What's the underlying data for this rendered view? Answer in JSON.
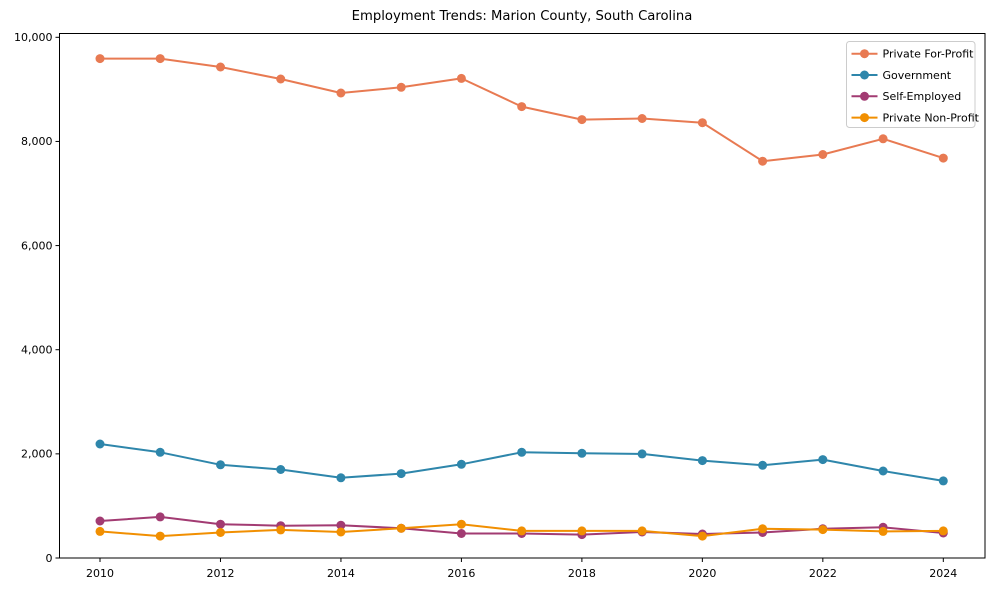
{
  "chart_data": {
    "type": "line",
    "title": "Employment Trends: Marion County, South Carolina",
    "xlabel": "",
    "ylabel": "",
    "x": [
      2010,
      2011,
      2012,
      2013,
      2014,
      2015,
      2016,
      2017,
      2018,
      2019,
      2020,
      2021,
      2022,
      2023,
      2024
    ],
    "series": [
      {
        "name": "Private For-Profit",
        "color": "#e87a52",
        "values": [
          9590,
          9590,
          9430,
          9200,
          8930,
          9040,
          9210,
          8670,
          8420,
          8440,
          8360,
          7620,
          7750,
          8050,
          7680
        ]
      },
      {
        "name": "Government",
        "color": "#2e86ab",
        "values": [
          2190,
          2030,
          1790,
          1700,
          1540,
          1620,
          1800,
          2030,
          2010,
          2000,
          1870,
          1780,
          1890,
          1670,
          1480
        ]
      },
      {
        "name": "Self-Employed",
        "color": "#a23b72",
        "values": [
          710,
          790,
          650,
          620,
          630,
          570,
          470,
          470,
          450,
          500,
          460,
          490,
          560,
          590,
          480
        ]
      },
      {
        "name": "Private Non-Profit",
        "color": "#f18f01",
        "values": [
          510,
          420,
          490,
          540,
          500,
          570,
          650,
          520,
          520,
          520,
          420,
          560,
          545,
          510,
          520
        ]
      }
    ],
    "xticks": [
      {
        "value": 2010,
        "label": "2010"
      },
      {
        "value": 2012,
        "label": "2012"
      },
      {
        "value": 2014,
        "label": "2014"
      },
      {
        "value": 2016,
        "label": "2016"
      },
      {
        "value": 2018,
        "label": "2018"
      },
      {
        "value": 2020,
        "label": "2020"
      },
      {
        "value": 2022,
        "label": "2022"
      },
      {
        "value": 2024,
        "label": "2024"
      }
    ],
    "yticks": [
      {
        "value": 0,
        "label": "0"
      },
      {
        "value": 2000,
        "label": "2,000"
      },
      {
        "value": 4000,
        "label": "4,000"
      },
      {
        "value": 6000,
        "label": "6,000"
      },
      {
        "value": 8000,
        "label": "8,000"
      },
      {
        "value": 10000,
        "label": "10,000"
      }
    ],
    "ylim": [
      0,
      10070
    ],
    "xlim": [
      2009.3,
      2024.7
    ],
    "grid": false,
    "legend_position": "top-right",
    "legend_entries": [
      "Private For-Profit",
      "Government",
      "Self-Employed",
      "Private Non-Profit"
    ]
  }
}
